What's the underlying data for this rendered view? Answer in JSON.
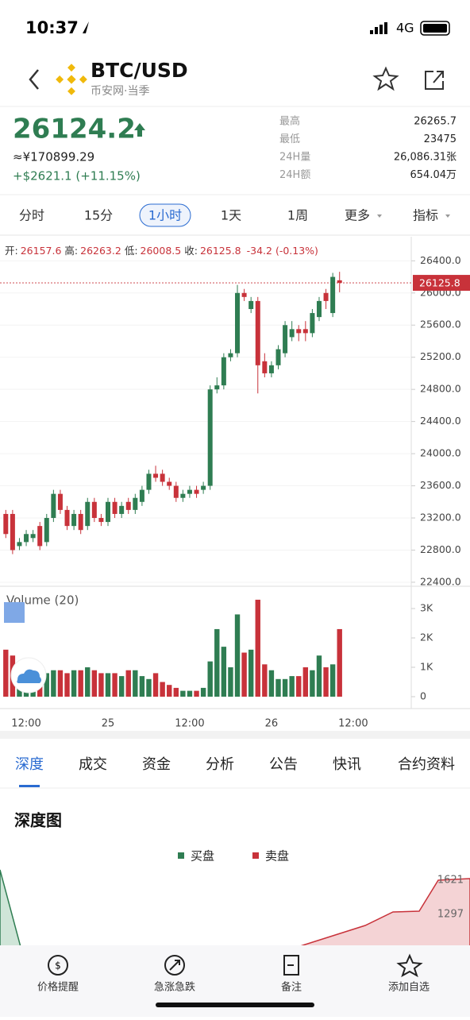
{
  "status": {
    "time": "10:37",
    "network": "4G"
  },
  "header": {
    "symbol": "BTC/USD",
    "exchange": "币安网·当季"
  },
  "quote": {
    "price": "26124.2",
    "cny": "≈¥170899.29",
    "change": "+$2621.1 (+11.15%)",
    "stats": [
      [
        "最高",
        "26265.7"
      ],
      [
        "最低",
        "23475"
      ],
      [
        "24H量",
        "26,086.31张"
      ],
      [
        "24H额",
        "654.04万"
      ]
    ]
  },
  "intervals": [
    "分时",
    "15分",
    "1小时",
    "1天",
    "1周",
    "更多",
    "指标"
  ],
  "chart_data": {
    "type": "candlestick",
    "info": {
      "open_label": "开:",
      "high_label": "高:",
      "low_label": "低:",
      "close_label": "收:",
      "change_label": "-34.2 (-0.13%)"
    },
    "up_color": "#2f7d52",
    "down_color": "#c8323a",
    "categories": [
      null,
      null,
      null,
      "12:00",
      null,
      null,
      null,
      null,
      null,
      null,
      null,
      null,
      null,
      null,
      null,
      "25",
      null,
      null,
      null,
      null,
      null,
      null,
      null,
      null,
      null,
      null,
      null,
      "12:00",
      null,
      null,
      null,
      null,
      null,
      null,
      null,
      null,
      null,
      null,
      null,
      "26",
      null,
      null,
      null,
      null,
      null,
      null,
      null,
      null,
      null,
      null,
      null,
      "12:00"
    ],
    "open": [
      23250,
      23250,
      22850,
      22900,
      22950,
      23100,
      22900,
      23200,
      23500,
      23300,
      23100,
      23250,
      23100,
      23400,
      23200,
      23150,
      23400,
      23250,
      23400,
      23300,
      23400,
      23550,
      23750,
      23750,
      23650,
      23600,
      23450,
      23500,
      23550,
      23550,
      23600,
      24800,
      24850,
      25200,
      25250,
      26000,
      25800,
      25900,
      25150,
      25000,
      25100,
      25250,
      25450,
      25550,
      25550,
      25500,
      25700,
      26000,
      25750,
      26157.6,
      null,
      null
    ],
    "high": [
      23300,
      23300,
      22950,
      23050,
      23050,
      23150,
      23250,
      23550,
      23550,
      23350,
      23300,
      23300,
      23450,
      23450,
      23250,
      23450,
      23450,
      23400,
      23450,
      23500,
      23600,
      23800,
      23850,
      23800,
      23700,
      23650,
      23550,
      23600,
      23600,
      23650,
      24850,
      24950,
      25250,
      25300,
      26100,
      26050,
      25950,
      25950,
      25250,
      25150,
      25350,
      25650,
      25650,
      25600,
      25650,
      25800,
      25950,
      26050,
      26250,
      26263.2,
      null,
      null
    ],
    "low": [
      22950,
      22750,
      22800,
      22850,
      22900,
      22800,
      22850,
      23150,
      23250,
      23050,
      23050,
      23000,
      23050,
      23150,
      23100,
      23100,
      23200,
      23200,
      23250,
      23250,
      23350,
      23500,
      23650,
      23600,
      23550,
      23400,
      23400,
      23450,
      23450,
      23500,
      23550,
      24750,
      24800,
      25150,
      25200,
      25900,
      25750,
      24750,
      24950,
      24950,
      25050,
      25200,
      25400,
      25400,
      25400,
      25450,
      25650,
      25800,
      25700,
      26008.5,
      null,
      null
    ],
    "close": [
      23000,
      22800,
      22900,
      23000,
      23000,
      22850,
      23200,
      23500,
      23300,
      23100,
      23250,
      23050,
      23400,
      23200,
      23150,
      23400,
      23250,
      23350,
      23300,
      23450,
      23550,
      23750,
      23700,
      23650,
      23600,
      23450,
      23500,
      23550,
      23500,
      23600,
      24800,
      24850,
      25200,
      25250,
      26000,
      25950,
      25900,
      25100,
      25000,
      25100,
      25300,
      25600,
      25550,
      25500,
      25500,
      25750,
      25900,
      25900,
      26200,
      26125.8,
      null,
      null
    ],
    "volume": [
      1600,
      1400,
      900,
      900,
      700,
      800,
      800,
      900,
      900,
      800,
      900,
      900,
      1000,
      900,
      800,
      800,
      800,
      700,
      900,
      900,
      700,
      600,
      800,
      500,
      400,
      300,
      200,
      200,
      200,
      300,
      1200,
      2300,
      1700,
      1000,
      2800,
      1500,
      1600,
      3300,
      1100,
      900,
      600,
      600,
      700,
      700,
      1000,
      900,
      1400,
      1000,
      1100,
      2300,
      null,
      null
    ],
    "ylim": [
      22350,
      26680
    ],
    "yticks": [
      {
        "value": 22400,
        "label": "22400.0"
      },
      {
        "value": 22800,
        "label": "22800.0"
      },
      {
        "value": 23200,
        "label": "23200.0"
      },
      {
        "value": 23600,
        "label": "23600.0"
      },
      {
        "value": 24000,
        "label": "24000.0"
      },
      {
        "value": 24400,
        "label": "24400.0"
      },
      {
        "value": 24800,
        "label": "24800.0"
      },
      {
        "value": 25200,
        "label": "25200.0"
      },
      {
        "value": 25600,
        "label": "25600.0"
      },
      {
        "value": 26000,
        "label": "26000.0"
      },
      {
        "value": 26400,
        "label": "26400.0"
      }
    ],
    "volume_title": "Volume (20)",
    "volume_ylim": [
      0,
      3650
    ],
    "volume_yticks": [
      0,
      {
        "value": 1000,
        "label": "1K"
      },
      {
        "value": 2000,
        "label": "2K"
      },
      {
        "value": 3000,
        "label": "3K"
      }
    ]
  },
  "tabs": [
    "深度",
    "成交",
    "资金",
    "分析",
    "公告",
    "快讯",
    "合约资料"
  ],
  "depth": {
    "title": "深度图",
    "legend": [
      "买盘",
      "卖盘"
    ],
    "ticks": [
      "1621",
      "1297"
    ]
  },
  "nav": [
    "价格提醒",
    "急涨急跌",
    "备注",
    "添加自选"
  ]
}
